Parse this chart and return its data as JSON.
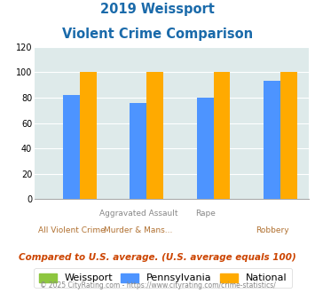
{
  "title_line1": "2019 Weissport",
  "title_line2": "Violent Crime Comparison",
  "groups": [
    {
      "label_top": "",
      "label_bottom": "All Violent Crime",
      "weissport": 0,
      "pennsylvania": 82,
      "national": 100
    },
    {
      "label_top": "Aggravated Assault",
      "label_bottom": "Murder & Mans...",
      "weissport": 0,
      "pennsylvania": 76,
      "national": 100
    },
    {
      "label_top": "Rape",
      "label_bottom": "",
      "weissport": 0,
      "pennsylvania": 80,
      "national": 100
    },
    {
      "label_top": "",
      "label_bottom": "Robbery",
      "weissport": 0,
      "pennsylvania": 93,
      "national": 100
    }
  ],
  "color_weissport": "#8dc63f",
  "color_pennsylvania": "#4d94ff",
  "color_national": "#ffaa00",
  "ylim": [
    0,
    120
  ],
  "yticks": [
    0,
    20,
    40,
    60,
    80,
    100,
    120
  ],
  "background_color": "#deeaea",
  "title_color": "#1a6aaa",
  "footnote": "Compared to U.S. average. (U.S. average equals 100)",
  "copyright": "© 2025 CityRating.com - https://www.cityrating.com/crime-statistics/",
  "legend_labels": [
    "Weissport",
    "Pennsylvania",
    "National"
  ],
  "xlabel_top_color": "#888888",
  "xlabel_bottom_color": "#b07030",
  "footnote_color": "#cc4400",
  "copyright_color": "#888888"
}
